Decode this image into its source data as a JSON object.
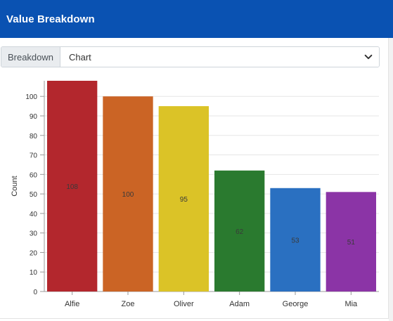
{
  "header": {
    "title": "Value Breakdown"
  },
  "controls": {
    "breakdown_label": "Breakdown",
    "selected_view": "Chart",
    "chevron_icon": "chevron-down-icon"
  },
  "chart_data": {
    "type": "bar",
    "categories": [
      "Alfie",
      "Zoe",
      "Oliver",
      "Adam",
      "George",
      "Mia"
    ],
    "values": [
      108,
      100,
      95,
      62,
      53,
      51
    ],
    "colors": [
      "#b3272d",
      "#cb6425",
      "#dbc327",
      "#2a7a2f",
      "#2a70c1",
      "#8b34a6"
    ],
    "xlabel": "",
    "ylabel": "Count",
    "ylim": [
      0,
      108
    ],
    "yticks": [
      0,
      10,
      20,
      30,
      40,
      50,
      60,
      70,
      80,
      90,
      100
    ],
    "grid": true,
    "legend": false
  }
}
